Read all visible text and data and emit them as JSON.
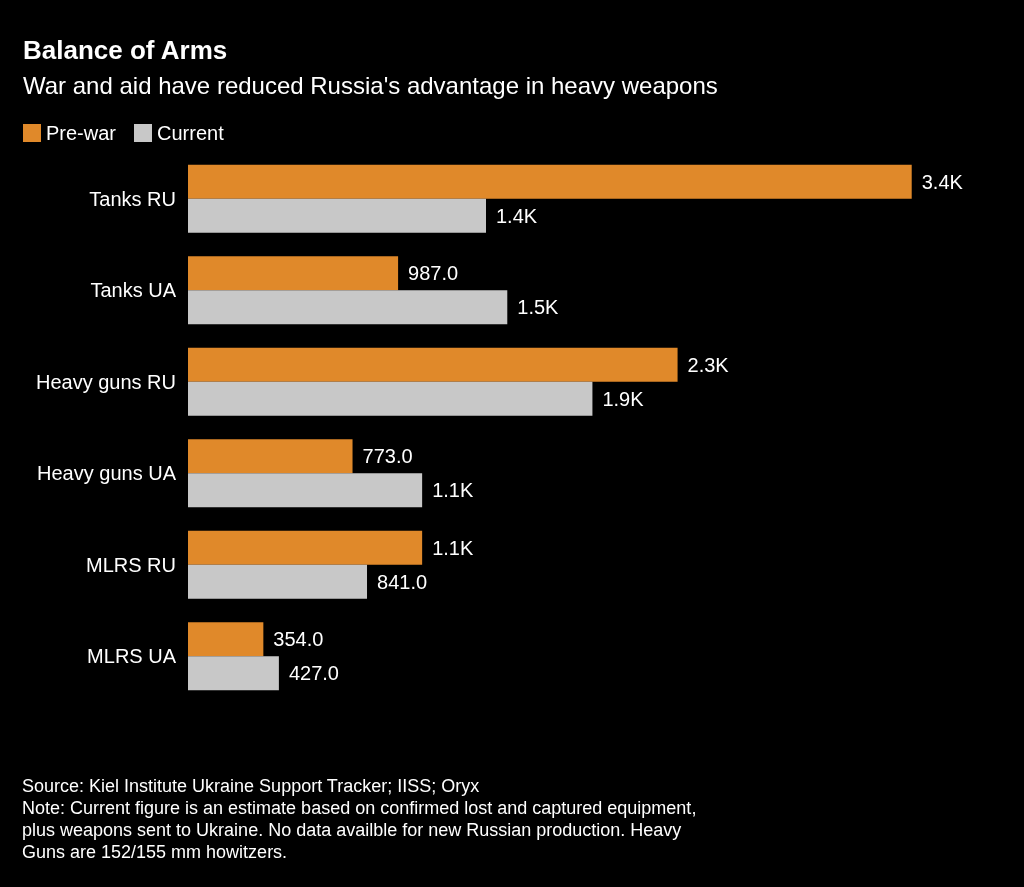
{
  "chart_data": {
    "type": "bar",
    "orientation": "horizontal",
    "title": "Balance of Arms",
    "subtitle": "War and aid have reduced Russia's advantage in heavy weapons",
    "categories": [
      "Tanks RU",
      "Tanks UA",
      "Heavy guns RU",
      "Heavy guns UA",
      "MLRS RU",
      "MLRS UA"
    ],
    "series": [
      {
        "name": "Pre-war",
        "color": "#e0892a",
        "values": [
          3400,
          987,
          2300,
          773,
          1100,
          354
        ],
        "value_labels": [
          "3.4K",
          "987.0",
          "2.3K",
          "773.0",
          "1.1K",
          "354.0"
        ]
      },
      {
        "name": "Current",
        "color": "#c8c8c8",
        "values": [
          1400,
          1500,
          1900,
          1100,
          841,
          427
        ],
        "value_labels": [
          "1.4K",
          "1.5K",
          "1.9K",
          "1.1K",
          "841.0",
          "427.0"
        ]
      }
    ],
    "legend": "top left",
    "annotations": [
      "Source: Kiel Institute Ukraine Support Tracker; IISS; Oryx",
      "Note: Current figure is an estimate based on confirmed lost and captured equipment, plus weapons sent to Ukraine. No data availble for new Russian production. Heavy Guns are 152/155 mm howitzers."
    ]
  }
}
